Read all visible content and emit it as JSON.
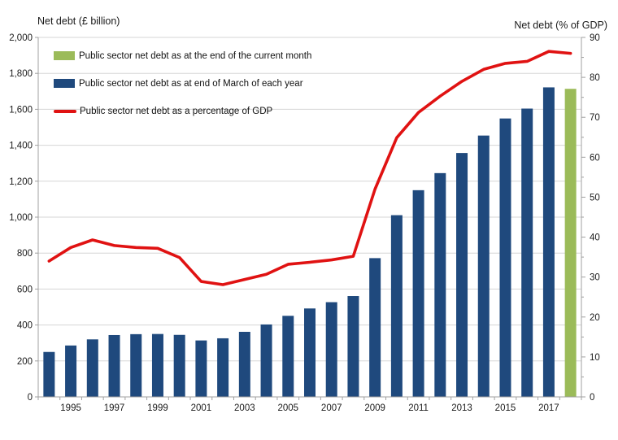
{
  "titles": {
    "left": "Net debt (£ billion)",
    "right": "Net debt (% of GDP)"
  },
  "legend": {
    "items": [
      {
        "label": "Public sector net debt as at the end of the current month",
        "marker": "bar",
        "color": "#9bbb59"
      },
      {
        "label": "Public sector net debt as at end of March of each year",
        "marker": "bar",
        "color": "#1f497d"
      },
      {
        "label": "Public sector net debt as a percentage of GDP",
        "marker": "line",
        "color": "#e01212"
      }
    ]
  },
  "colors": {
    "bar_blue": "#1f497d",
    "bar_green": "#9bbb59",
    "line_red": "#e01212",
    "gridline": "#d6d6d6",
    "axis": "#a0a0a0",
    "text": "#1a1a1a"
  },
  "chart_data": {
    "type": "combo-bar-line",
    "title": "",
    "categories": [
      "1994",
      "1995",
      "1996",
      "1997",
      "1998",
      "1999",
      "2000",
      "2001",
      "2002",
      "2003",
      "2004",
      "2005",
      "2006",
      "2007",
      "2008",
      "2009",
      "2010",
      "2011",
      "2012",
      "2013",
      "2014",
      "2015",
      "2016",
      "2017",
      "Current month"
    ],
    "x_axis": {
      "tick_labels": [
        "1995",
        "1997",
        "1999",
        "2001",
        "2003",
        "2005",
        "2007",
        "2009",
        "2011",
        "2013",
        "2015",
        "2017"
      ],
      "tick_label_indices": [
        1,
        3,
        5,
        7,
        9,
        11,
        13,
        15,
        17,
        19,
        21,
        23
      ]
    },
    "left_axis": {
      "label": "Net debt (£ billion)",
      "min": 0,
      "max": 2000,
      "step": 200
    },
    "right_axis": {
      "label": "Net debt (% of GDP)",
      "min": 0,
      "max": 90,
      "step": 10,
      "minor_step": 5
    },
    "grid": true,
    "legend_position": "top-left-inside",
    "series": [
      {
        "name": "Public sector net debt as at end of March of each year",
        "type": "bar",
        "axis": "left",
        "color": "#1f497d",
        "values": [
          250,
          286,
          320,
          344,
          349,
          350,
          345,
          314,
          326,
          362,
          403,
          451,
          492,
          527,
          561,
          772,
          1011,
          1150,
          1245,
          1357,
          1454,
          1549,
          1604,
          1722,
          null
        ]
      },
      {
        "name": "Public sector net debt as at the end of the current month",
        "type": "bar",
        "axis": "left",
        "color": "#9bbb59",
        "values": [
          null,
          null,
          null,
          null,
          null,
          null,
          null,
          null,
          null,
          null,
          null,
          null,
          null,
          null,
          null,
          null,
          null,
          null,
          null,
          null,
          null,
          null,
          null,
          null,
          1714
        ]
      },
      {
        "name": "Public sector net debt as a percentage of GDP",
        "type": "line",
        "axis": "right",
        "color": "#e01212",
        "values": [
          34.0,
          37.4,
          39.3,
          37.9,
          37.4,
          37.2,
          34.9,
          28.9,
          28.1,
          29.4,
          30.7,
          33.2,
          33.7,
          34.3,
          35.2,
          52.0,
          64.9,
          71.2,
          75.3,
          79.0,
          82.0,
          83.5,
          84.0,
          86.5,
          86.0
        ]
      }
    ]
  }
}
